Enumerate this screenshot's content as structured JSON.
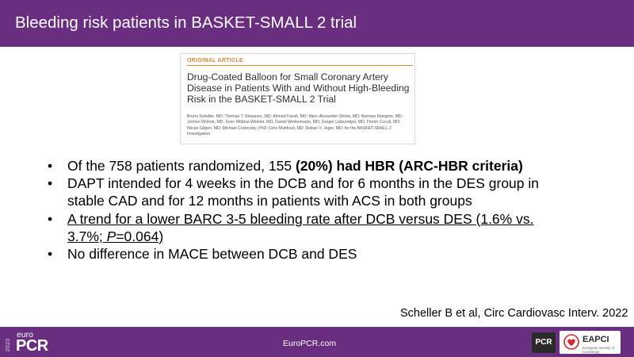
{
  "header": {
    "title": "Bleeding risk patients in BASKET-SMALL 2 trial"
  },
  "article": {
    "type_label": "ORIGINAL ARTICLE",
    "title": "Drug-Coated Balloon for Small Coronary Artery Disease in Patients With and Without High-Bleeding Risk in the BASKET-SMALL 2 Trial",
    "authors": "Bruno Scheller, MD; Thomas T. Rissanen, MD; Ahmed Farah, MD; Marc-Alexander Ohlow, MD; Norman Mangner, MD; Jochen Wöhrle, MD; Sven Möbius-Winkler, MD; Daniel Weilenmann, MD; Gregor Leibundgut, MD; Florim Cuculi, MD; Nicole Gilgen, MD; Michael Coslovsky, PhD; Felix Mahfoud, MD; Raban V. Jeger, MD; for the BASKET-SMALL 2 Investigators"
  },
  "bullets": [
    {
      "marker": "•",
      "text": "Of the 758 patients randomized, 155 ",
      "bold": "(20%) had HBR (ARC-HBR criteria)"
    },
    {
      "marker": "•",
      "text": "DAPT intended for 4 weeks in the DCB and for 6 months in the DES group in stable CAD and for 12 months in patients with ACS in both groups"
    },
    {
      "marker": "•",
      "text": "A trend for a lower BARC 3-5 bleeding rate after DCB versus DES (1.6% vs. 3.7%; ",
      "italic": "P",
      "text_end": "=0.064)"
    },
    {
      "marker": "•",
      "text": "No difference in MACE between DCB and DES"
    }
  ],
  "citation": "Scheller B et al, Circ Cardiovasc Interv. 2022",
  "footer": {
    "year": "2023",
    "logo_top": "euro",
    "logo_main": "PCR",
    "url": "EuroPCR.com",
    "pcr_badge": "PCR",
    "eapci_label": "EAPCI",
    "eapci_sub": "European Society of Cardiology"
  },
  "colors": {
    "brand_purple": "#6a2e80",
    "article_accent": "#d9852c",
    "eapci_red": "#d7282f"
  },
  "icons": [
    "eapci-heart-icon"
  ]
}
